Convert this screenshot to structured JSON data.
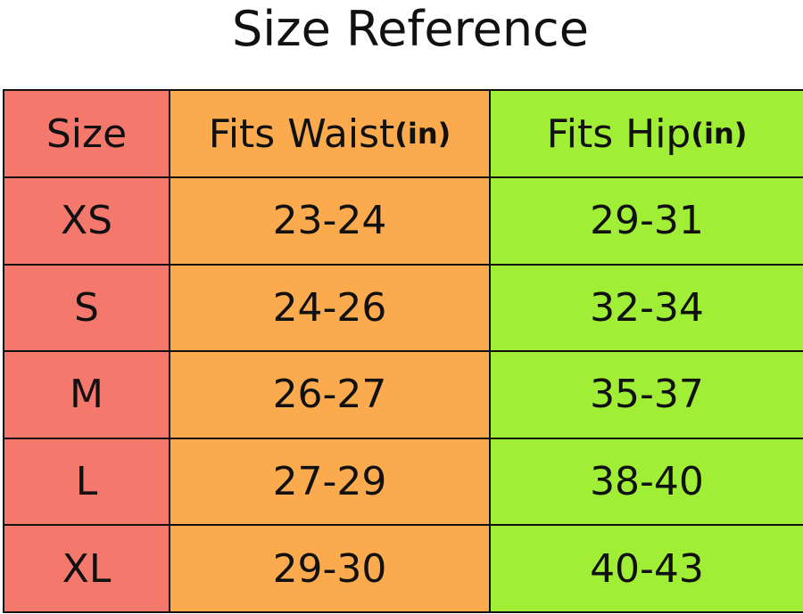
{
  "title": "Size Reference",
  "table": {
    "header": [
      {
        "label": "Size"
      },
      {
        "label": "Fits Waist",
        "unit": "(in)"
      },
      {
        "label": "Fits Hip",
        "unit": "(in)"
      }
    ],
    "rows": [
      [
        "XS",
        "23-24",
        "29-31"
      ],
      [
        "S",
        "24-26",
        "32-34"
      ],
      [
        "M",
        "26-27",
        "35-37"
      ],
      [
        "L",
        "27-29",
        "38-40"
      ],
      [
        "XL",
        "29-30",
        "40-43"
      ]
    ]
  }
}
